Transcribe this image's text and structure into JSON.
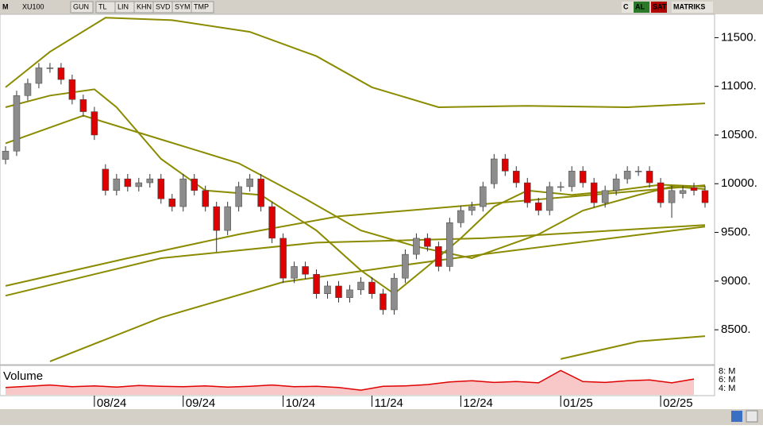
{
  "toolbar": {
    "symbol": "XU100",
    "buttons": [
      "GUN",
      "TL",
      "LIN",
      "KHN",
      "SVD",
      "SYM",
      "TMP"
    ],
    "right": [
      "C",
      "AL",
      "SAT",
      "MATRIKS"
    ]
  },
  "chart_data": {
    "type": "candlestick",
    "open": [
      10250,
      10335,
      10905,
      11030,
      11190,
      11190,
      11070,
      10865,
      10740,
      10150,
      9930,
      10050,
      9970,
      10010,
      10050,
      9845,
      9765,
      10050,
      9930,
      9765,
      9520,
      9765,
      9970,
      10050,
      9765,
      9440,
      9030,
      9150,
      9070,
      8870,
      8950,
      8830,
      8910,
      8990,
      8870,
      8705,
      9030,
      9275,
      9440,
      9355,
      9150,
      9600,
      9725,
      9765,
      10000,
      10255,
      10130,
      10010,
      9805,
      9725,
      9970,
      9970,
      10130,
      10010,
      9805,
      9930,
      10050,
      10130,
      10130,
      10010,
      9805,
      9900,
      9960,
      9930
    ],
    "high": [
      10385,
      10955,
      11080,
      11240,
      11240,
      11240,
      11120,
      10915,
      10790,
      10200,
      10100,
      10100,
      10060,
      10100,
      10100,
      9895,
      10100,
      10100,
      9980,
      9815,
      9815,
      10020,
      10100,
      10100,
      9815,
      9490,
      9200,
      9200,
      9120,
      9000,
      9000,
      8960,
      9040,
      9040,
      8920,
      9080,
      9325,
      9490,
      9490,
      9405,
      9650,
      9775,
      9815,
      10020,
      10305,
      10305,
      10180,
      10060,
      9855,
      10020,
      10020,
      10180,
      10180,
      10060,
      9980,
      10100,
      10180,
      10180,
      10180,
      10060,
      9980,
      9980,
      10010,
      9980
    ],
    "low": [
      10200,
      10285,
      10855,
      10980,
      11140,
      11020,
      10815,
      10690,
      10450,
      9880,
      9880,
      9920,
      9920,
      9960,
      9795,
      9715,
      9715,
      9880,
      9715,
      9300,
      9470,
      9715,
      9920,
      9715,
      9390,
      8980,
      8980,
      9020,
      8820,
      8820,
      8780,
      8780,
      8860,
      8820,
      8655,
      8655,
      8980,
      9225,
      9305,
      9100,
      9100,
      9550,
      9675,
      9715,
      9950,
      10080,
      9960,
      9755,
      9675,
      9675,
      9920,
      9920,
      9960,
      9755,
      9755,
      9880,
      10000,
      10080,
      9960,
      9755,
      9650,
      9850,
      9880,
      9755
    ],
    "close": [
      10335,
      10905,
      11030,
      11190,
      11190,
      11070,
      10865,
      10740,
      10500,
      9930,
      10050,
      9970,
      10010,
      10050,
      9845,
      9765,
      10050,
      9930,
      9765,
      9520,
      9765,
      9970,
      10050,
      9765,
      9440,
      9030,
      9150,
      9070,
      8870,
      8950,
      8830,
      8910,
      8990,
      8870,
      8705,
      9030,
      9275,
      9440,
      9355,
      9150,
      9600,
      9725,
      9765,
      9970,
      10255,
      10130,
      10010,
      9805,
      9725,
      9970,
      9970,
      10130,
      10010,
      9805,
      9930,
      10050,
      10130,
      10130,
      10010,
      9805,
      9930,
      9930,
      9930,
      9805
    ],
    "up_color": "#8c8c8c",
    "down_color": "#e00000",
    "lines": [
      {
        "color": "#8b8b00",
        "x": [
          0,
          4,
          9,
          15,
          22,
          28,
          33,
          39,
          47,
          56,
          63
        ],
        "values": [
          10990,
          11355,
          11705,
          11680,
          11560,
          11310,
          10990,
          10785,
          10800,
          10785,
          10825
        ]
      },
      {
        "color": "#8b8b00",
        "x": [
          0,
          4,
          8,
          10,
          14,
          18,
          23,
          28,
          32,
          35,
          38,
          41,
          44,
          47,
          51,
          55,
          59,
          63
        ],
        "values": [
          10785,
          10905,
          10970,
          10785,
          10255,
          9930,
          9885,
          9520,
          9110,
          8870,
          9150,
          9440,
          9765,
          9930,
          9885,
          9930,
          9990,
          9970
        ]
      },
      {
        "color": "#8b8b00",
        "x": [
          0,
          7,
          14,
          21,
          27,
          32,
          37,
          42,
          48,
          52,
          57,
          60,
          63
        ],
        "values": [
          10415,
          10700,
          10455,
          10210,
          9845,
          9520,
          9355,
          9235,
          9480,
          9725,
          9885,
          9970,
          9945
        ]
      },
      {
        "color": "#8b8b00",
        "x": [
          0,
          11,
          21,
          30,
          43,
          63
        ],
        "values": [
          8950,
          9235,
          9480,
          9665,
          9790,
          9985
        ]
      },
      {
        "color": "#8b8b00",
        "x": [
          0,
          14,
          28,
          43,
          63
        ],
        "values": [
          8850,
          9235,
          9395,
          9440,
          9575
        ]
      },
      {
        "color": "#8b8b00",
        "x": [
          4,
          14,
          25,
          35,
          43,
          63
        ],
        "values": [
          8175,
          8625,
          8990,
          9150,
          9275,
          9560
        ]
      },
      {
        "color": "#8b8b00",
        "x": [
          50,
          57,
          63
        ],
        "values": [
          8200,
          8380,
          8435
        ]
      }
    ],
    "xlim": [
      -0.5,
      63.5
    ],
    "ylim": [
      8150,
      11740
    ],
    "yticks": [
      {
        "value": 11500,
        "label": "11500."
      },
      {
        "value": 11000,
        "label": "11000."
      },
      {
        "value": 10500,
        "label": "10500."
      },
      {
        "value": 10000,
        "label": "10000."
      },
      {
        "value": 9500,
        "label": "9500."
      },
      {
        "value": 9000,
        "label": "9000."
      },
      {
        "value": 8500,
        "label": "8500."
      }
    ],
    "xticks": [
      {
        "value": 8,
        "label": "08/24"
      },
      {
        "value": 16,
        "label": "09/24"
      },
      {
        "value": 25,
        "label": "10/24"
      },
      {
        "value": 33,
        "label": "11/24"
      },
      {
        "value": 41,
        "label": "12/24"
      },
      {
        "value": 50,
        "label": "01/25"
      },
      {
        "value": 59,
        "label": "02/25"
      }
    ],
    "volume": {
      "title": "Volume",
      "color": "#e00000",
      "x": [
        0,
        2,
        4,
        6,
        8,
        10,
        12,
        14,
        16,
        18,
        20,
        22,
        24,
        26,
        28,
        30,
        32,
        34,
        36,
        38,
        40,
        42,
        44,
        46,
        48,
        50,
        52,
        54,
        56,
        58,
        60,
        62
      ],
      "values": [
        4.2,
        4.5,
        4.8,
        4.4,
        4.6,
        4.3,
        4.7,
        4.5,
        4.4,
        4.6,
        4.3,
        4.5,
        4.8,
        4.4,
        4.5,
        4.2,
        3.6,
        4.5,
        4.6,
        4.9,
        5.5,
        5.8,
        5.4,
        5.6,
        5.3,
        8.2,
        5.6,
        5.4,
        5.8,
        6.0,
        5.3,
        6.2
      ],
      "ylim": [
        2.5,
        9
      ],
      "yticks": [
        {
          "value": 8,
          "label": "8: M"
        },
        {
          "value": 6,
          "label": "6: M"
        },
        {
          "value": 4,
          "label": "4: M"
        }
      ]
    }
  }
}
